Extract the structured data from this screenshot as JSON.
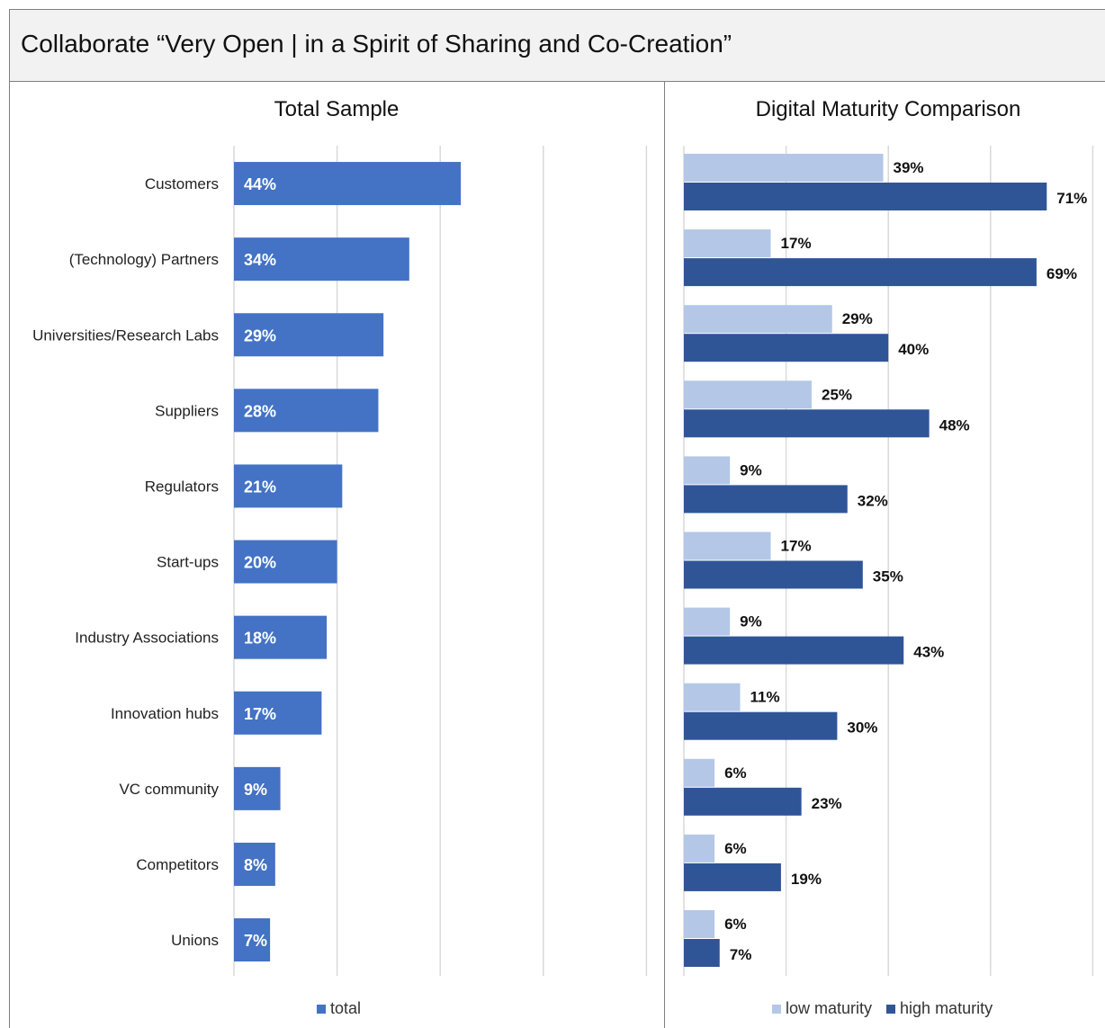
{
  "title": "Collaborate “Very Open | in a Spirit of Sharing and Co-Creation”",
  "colors": {
    "total": "#4472c4",
    "low": "#b4c7e7",
    "high": "#2f5597",
    "grid": "#d9d9d9"
  },
  "chart_data": [
    {
      "type": "bar",
      "orientation": "horizontal",
      "title": "Total Sample",
      "categories": [
        "Customers",
        "(Technology) Partners",
        "Universities/Research Labs",
        "Suppliers",
        "Regulators",
        "Start-ups",
        "Industry Associations",
        "Innovation hubs",
        "VC community",
        "Competitors",
        "Unions"
      ],
      "series": [
        {
          "name": "total",
          "values": [
            44,
            34,
            29,
            28,
            21,
            20,
            18,
            17,
            9,
            8,
            7
          ],
          "labels": [
            "44%",
            "34%",
            "29%",
            "28%",
            "21%",
            "20%",
            "18%",
            "17%",
            "9%",
            "8%",
            "7%"
          ]
        }
      ],
      "xlim": [
        0,
        80
      ],
      "grid": true,
      "legend": "bottom"
    },
    {
      "type": "bar",
      "orientation": "horizontal",
      "title": "Digital Maturity Comparison",
      "categories": [
        "Customers",
        "(Technology) Partners",
        "Universities/Research Labs",
        "Suppliers",
        "Regulators",
        "Start-ups",
        "Industry Associations",
        "Innovation hubs",
        "VC community",
        "Competitors",
        "Unions"
      ],
      "series": [
        {
          "name": "low maturity",
          "values": [
            39,
            17,
            29,
            25,
            9,
            17,
            9,
            11,
            6,
            6,
            6
          ],
          "labels": [
            "39%",
            "17%",
            "29%",
            "25%",
            "9%",
            "17%",
            "9%",
            "11%",
            "6%",
            "6%",
            "6%"
          ]
        },
        {
          "name": "high maturity",
          "values": [
            71,
            69,
            40,
            48,
            32,
            35,
            43,
            30,
            23,
            19,
            7
          ],
          "labels": [
            "71%",
            "69%",
            "40%",
            "48%",
            "32%",
            "35%",
            "43%",
            "30%",
            "23%",
            "19%",
            "7%"
          ]
        }
      ],
      "xlim": [
        0,
        80
      ],
      "grid": true,
      "legend": "bottom"
    }
  ]
}
